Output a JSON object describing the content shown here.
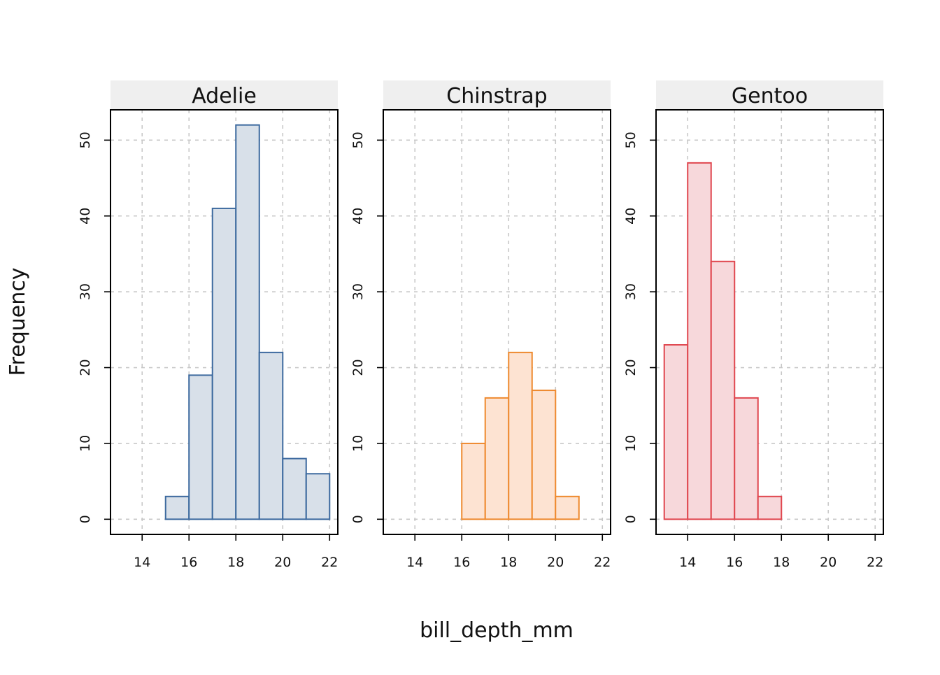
{
  "chart_data": {
    "type": "bar",
    "subtype": "faceted-histogram",
    "xlabel": "bill_depth_mm",
    "ylabel": "Frequency",
    "xlim": [
      12.65,
      22.35
    ],
    "ylim": [
      -2,
      54
    ],
    "xticks": [
      14,
      16,
      18,
      20,
      22
    ],
    "yticks": [
      0,
      10,
      20,
      30,
      40,
      50
    ],
    "grid": true,
    "panels": [
      {
        "name": "Adelie",
        "stroke": "#3d6a9f",
        "fill": "#d8e0e9",
        "bins": [
          {
            "x0": 15,
            "x1": 16,
            "count": 3
          },
          {
            "x0": 16,
            "x1": 17,
            "count": 19
          },
          {
            "x0": 17,
            "x1": 18,
            "count": 41
          },
          {
            "x0": 18,
            "x1": 19,
            "count": 52
          },
          {
            "x0": 19,
            "x1": 20,
            "count": 22
          },
          {
            "x0": 20,
            "x1": 21,
            "count": 8
          },
          {
            "x0": 21,
            "x1": 22,
            "count": 6
          }
        ]
      },
      {
        "name": "Chinstrap",
        "stroke": "#ee8a2f",
        "fill": "#fde3d2",
        "bins": [
          {
            "x0": 16,
            "x1": 17,
            "count": 10
          },
          {
            "x0": 17,
            "x1": 18,
            "count": 16
          },
          {
            "x0": 18,
            "x1": 19,
            "count": 22
          },
          {
            "x0": 19,
            "x1": 20,
            "count": 17
          },
          {
            "x0": 20,
            "x1": 21,
            "count": 3
          }
        ]
      },
      {
        "name": "Gentoo",
        "stroke": "#e0474f",
        "fill": "#f7d8db",
        "bins": [
          {
            "x0": 13,
            "x1": 14,
            "count": 23
          },
          {
            "x0": 14,
            "x1": 15,
            "count": 47
          },
          {
            "x0": 15,
            "x1": 16,
            "count": 34
          },
          {
            "x0": 16,
            "x1": 17,
            "count": 16
          },
          {
            "x0": 17,
            "x1": 18,
            "count": 3
          }
        ]
      }
    ]
  }
}
